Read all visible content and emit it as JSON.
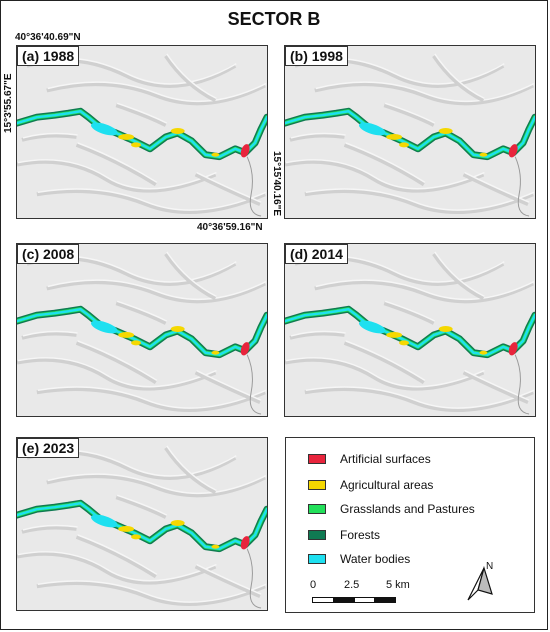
{
  "title": "SECTOR B",
  "panels": [
    {
      "label": "(a) 1988"
    },
    {
      "label": "(b) 1998"
    },
    {
      "label": "(c) 2008"
    },
    {
      "label": "(d) 2014"
    },
    {
      "label": "(e) 2023"
    }
  ],
  "coordinates": {
    "top_left_lat": "40°36'40.69\"N",
    "left_lon": "15°3'55.67\"E",
    "right_lon": "15°15'40.16\"E",
    "bottom_right_lat": "40°36'59.16\"N"
  },
  "legend": {
    "items": [
      {
        "label": "Artificial surfaces",
        "color": "#e8243c"
      },
      {
        "label": "Agricultural areas",
        "color": "#f5d800"
      },
      {
        "label": "Grasslands and Pastures",
        "color": "#22e05a"
      },
      {
        "label": "Forests",
        "color": "#0f7a52"
      },
      {
        "label": "Water bodies",
        "color": "#1ee0f0"
      }
    ],
    "scale": {
      "ticks": [
        "0",
        "2.5",
        "5 km"
      ]
    },
    "north_label": "N"
  }
}
